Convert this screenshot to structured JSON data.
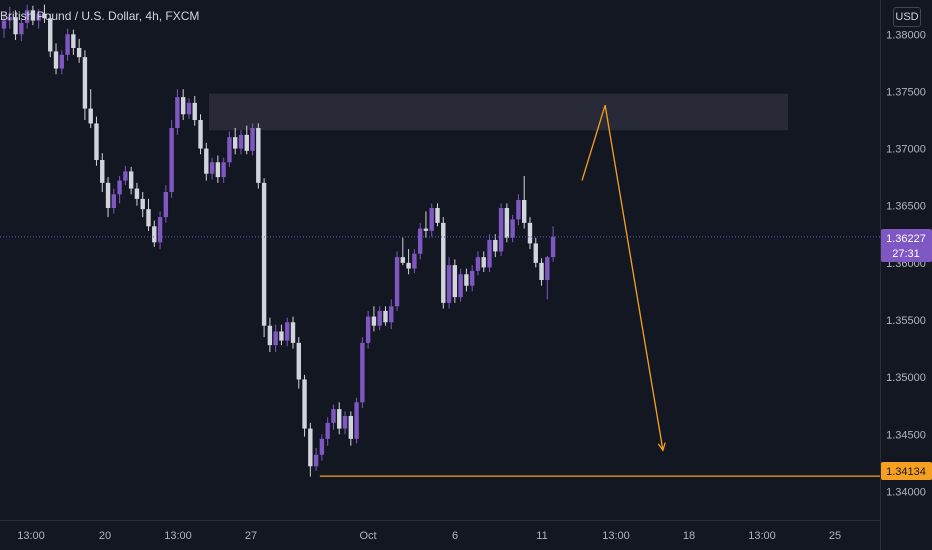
{
  "header": {
    "symbol": "British Pound / U.S. Dollar, 4h, FXCM"
  },
  "scale": {
    "currency": "USD"
  },
  "colors": {
    "background": "#131722",
    "bull_candle": "#7e57c2",
    "bear_candle": "#d1d4dc",
    "annotation": "#f7a01f",
    "grid_text": "#b2b5be",
    "price_line": "#5b5fc7"
  },
  "chart_data": {
    "type": "candlestick",
    "title": "British Pound / U.S. Dollar, 4h, FXCM",
    "ylim": [
      1.3375,
      1.383
    ],
    "y_ticks": [
      "1.38000",
      "1.37500",
      "1.37000",
      "1.36500",
      "1.36000",
      "1.35500",
      "1.35000",
      "1.34500",
      "1.34000"
    ],
    "x_ticks": [
      "13:00",
      "20",
      "13:00",
      "27",
      "Oct",
      "6",
      "11",
      "13:00",
      "18",
      "13:00",
      "25"
    ],
    "current_price": {
      "label": "1.36227",
      "countdown": "27:31",
      "value": 1.36227
    },
    "support_level": {
      "label": "1.34134",
      "value": 1.34134
    },
    "resistance_zone": {
      "top": 1.3748,
      "bottom": 1.3716
    },
    "projection_path": [
      {
        "index": 100,
        "price": 1.3672
      },
      {
        "index": 104,
        "price": 1.3738
      },
      {
        "index": 114,
        "price": 1.3436
      }
    ],
    "candles": [
      [
        1.3805,
        1.3818,
        1.3797,
        1.3812
      ],
      [
        1.3812,
        1.3824,
        1.3805,
        1.3815
      ],
      [
        1.3815,
        1.3821,
        1.3795,
        1.38
      ],
      [
        1.38,
        1.3813,
        1.3794,
        1.381
      ],
      [
        1.381,
        1.3826,
        1.3805,
        1.3821
      ],
      [
        1.3821,
        1.3825,
        1.3808,
        1.3812
      ],
      [
        1.3812,
        1.3822,
        1.3805,
        1.3818
      ],
      [
        1.3818,
        1.3826,
        1.381,
        1.3814
      ],
      [
        1.3814,
        1.3818,
        1.378,
        1.3785
      ],
      [
        1.3785,
        1.3792,
        1.3765,
        1.377
      ],
      [
        1.377,
        1.3786,
        1.3765,
        1.3782
      ],
      [
        1.3782,
        1.3805,
        1.3777,
        1.38
      ],
      [
        1.38,
        1.3804,
        1.3782,
        1.3788
      ],
      [
        1.3788,
        1.3796,
        1.3775,
        1.378
      ],
      [
        1.378,
        1.3786,
        1.3725,
        1.3735
      ],
      [
        1.3735,
        1.3752,
        1.3718,
        1.3722
      ],
      [
        1.3722,
        1.3728,
        1.3685,
        1.369
      ],
      [
        1.369,
        1.3696,
        1.3662,
        1.367
      ],
      [
        1.367,
        1.3675,
        1.364,
        1.3648
      ],
      [
        1.3648,
        1.3665,
        1.3643,
        1.366
      ],
      [
        1.366,
        1.3676,
        1.3652,
        1.3672
      ],
      [
        1.3672,
        1.3685,
        1.3668,
        1.368
      ],
      [
        1.368,
        1.3684,
        1.366,
        1.3665
      ],
      [
        1.3665,
        1.367,
        1.365,
        1.3656
      ],
      [
        1.3656,
        1.3662,
        1.364,
        1.3647
      ],
      [
        1.3647,
        1.3656,
        1.3628,
        1.3632
      ],
      [
        1.3632,
        1.3637,
        1.3614,
        1.3618
      ],
      [
        1.3618,
        1.3645,
        1.3612,
        1.364
      ],
      [
        1.364,
        1.3668,
        1.3635,
        1.3662
      ],
      [
        1.3662,
        1.3725,
        1.3657,
        1.3718
      ],
      [
        1.3718,
        1.3752,
        1.3712,
        1.3745
      ],
      [
        1.3745,
        1.3752,
        1.3725,
        1.373
      ],
      [
        1.373,
        1.3744,
        1.3726,
        1.374
      ],
      [
        1.374,
        1.3746,
        1.372,
        1.3725
      ],
      [
        1.3725,
        1.373,
        1.3695,
        1.37
      ],
      [
        1.37,
        1.3705,
        1.3672,
        1.3678
      ],
      [
        1.3678,
        1.3692,
        1.3673,
        1.3688
      ],
      [
        1.3688,
        1.3694,
        1.367,
        1.3675
      ],
      [
        1.3675,
        1.3692,
        1.367,
        1.3688
      ],
      [
        1.3688,
        1.3715,
        1.3684,
        1.371
      ],
      [
        1.371,
        1.3718,
        1.3695,
        1.37
      ],
      [
        1.37,
        1.3716,
        1.3695,
        1.3712
      ],
      [
        1.3712,
        1.372,
        1.3695,
        1.3698
      ],
      [
        1.3698,
        1.3722,
        1.3694,
        1.3718
      ],
      [
        1.3718,
        1.3722,
        1.3665,
        1.367
      ],
      [
        1.367,
        1.3674,
        1.3535,
        1.3545
      ],
      [
        1.3545,
        1.3552,
        1.3522,
        1.3528
      ],
      [
        1.3528,
        1.3546,
        1.3522,
        1.354
      ],
      [
        1.354,
        1.3546,
        1.3528,
        1.3532
      ],
      [
        1.3532,
        1.3552,
        1.3527,
        1.3548
      ],
      [
        1.3548,
        1.3553,
        1.3525,
        1.353
      ],
      [
        1.353,
        1.3535,
        1.349,
        1.3498
      ],
      [
        1.3498,
        1.3502,
        1.3448,
        1.3455
      ],
      [
        1.3455,
        1.346,
        1.3413,
        1.3422
      ],
      [
        1.3422,
        1.3438,
        1.3418,
        1.3432
      ],
      [
        1.3432,
        1.345,
        1.3427,
        1.3446
      ],
      [
        1.3446,
        1.3465,
        1.344,
        1.346
      ],
      [
        1.346,
        1.3476,
        1.3454,
        1.3472
      ],
      [
        1.3472,
        1.3478,
        1.345,
        1.3455
      ],
      [
        1.3455,
        1.347,
        1.345,
        1.3466
      ],
      [
        1.3466,
        1.347,
        1.344,
        1.3446
      ],
      [
        1.3446,
        1.3482,
        1.3442,
        1.3478
      ],
      [
        1.3478,
        1.3535,
        1.3473,
        1.353
      ],
      [
        1.353,
        1.3558,
        1.3525,
        1.3553
      ],
      [
        1.3553,
        1.3562,
        1.354,
        1.3545
      ],
      [
        1.3545,
        1.3562,
        1.3541,
        1.3558
      ],
      [
        1.3558,
        1.3562,
        1.3545,
        1.3548
      ],
      [
        1.3548,
        1.3568,
        1.3542,
        1.3562
      ],
      [
        1.3562,
        1.361,
        1.3558,
        1.3605
      ],
      [
        1.3605,
        1.3622,
        1.3598,
        1.36
      ],
      [
        1.36,
        1.3612,
        1.359,
        1.3595
      ],
      [
        1.3595,
        1.3612,
        1.3591,
        1.3608
      ],
      [
        1.3608,
        1.3635,
        1.3603,
        1.363
      ],
      [
        1.363,
        1.3645,
        1.3622,
        1.3628
      ],
      [
        1.3628,
        1.3652,
        1.3623,
        1.3648
      ],
      [
        1.3648,
        1.3652,
        1.3632,
        1.3635
      ],
      [
        1.3635,
        1.364,
        1.356,
        1.3565
      ],
      [
        1.3565,
        1.3605,
        1.356,
        1.3598
      ],
      [
        1.3598,
        1.3603,
        1.3565,
        1.357
      ],
      [
        1.357,
        1.3595,
        1.3566,
        1.359
      ],
      [
        1.359,
        1.3595,
        1.3575,
        1.358
      ],
      [
        1.358,
        1.3598,
        1.3575,
        1.3593
      ],
      [
        1.3593,
        1.361,
        1.3589,
        1.3605
      ],
      [
        1.3605,
        1.361,
        1.3592,
        1.3596
      ],
      [
        1.3596,
        1.3625,
        1.3592,
        1.362
      ],
      [
        1.362,
        1.3625,
        1.3605,
        1.361
      ],
      [
        1.361,
        1.3652,
        1.3606,
        1.3648
      ],
      [
        1.3648,
        1.3652,
        1.3618,
        1.3622
      ],
      [
        1.3622,
        1.3642,
        1.3618,
        1.3638
      ],
      [
        1.3638,
        1.366,
        1.3633,
        1.3655
      ],
      [
        1.3655,
        1.3676,
        1.363,
        1.3635
      ],
      [
        1.3635,
        1.364,
        1.3612,
        1.3617
      ],
      [
        1.3617,
        1.3622,
        1.3596,
        1.36
      ],
      [
        1.36,
        1.3604,
        1.358,
        1.3585
      ],
      [
        1.3585,
        1.3606,
        1.3568,
        1.3605
      ],
      [
        1.3605,
        1.3632,
        1.3601,
        1.3623
      ]
    ]
  }
}
